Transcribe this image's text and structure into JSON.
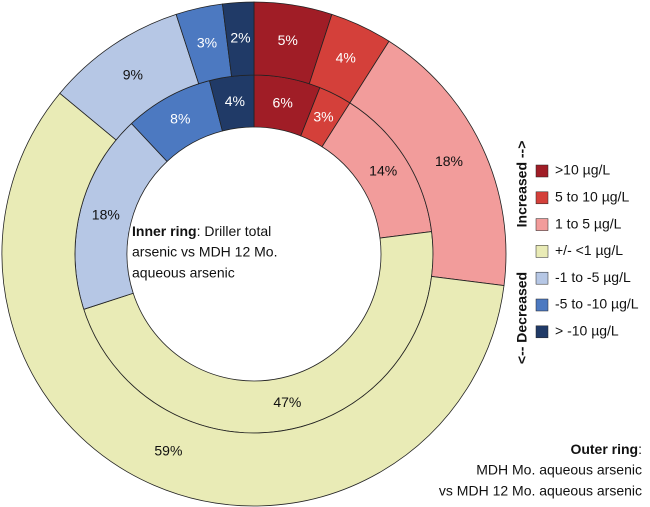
{
  "chart_data": {
    "type": "donut",
    "categories": [
      ">10 µg/L",
      "5 to 10 µg/L",
      "1 to 5 µg/L",
      "+/-  <1 µg/L",
      "-1 to -5 µg/L",
      "-5 to -10 µg/L",
      "> -10 µg/L"
    ],
    "colors": [
      "#a01d26",
      "#d4403a",
      "#f29c9b",
      "#e9ebb6",
      "#b6c7e5",
      "#4c79c1",
      "#203a67"
    ],
    "series": [
      {
        "name": "Inner ring",
        "values": [
          6,
          3,
          14,
          47,
          18,
          8,
          4
        ],
        "value_labels": [
          "6%",
          "3%",
          "14%",
          "47%",
          "18%",
          "8%",
          "4%"
        ],
        "description": [
          ": Driller total",
          "arsenic vs MDH 12 Mo.",
          "aqueous arsenic"
        ]
      },
      {
        "name": "Outer ring",
        "values": [
          5,
          4,
          18,
          59,
          9,
          3,
          2
        ],
        "value_labels": [
          "5%",
          "4%",
          "18%",
          "59%",
          "9%",
          "3%",
          "2%"
        ],
        "description": [
          ":",
          "MDH Mo. aqueous arsenic",
          "vs MDH 12 Mo. aqueous arsenic"
        ]
      }
    ],
    "axis_labels": [
      "Increased -->",
      "<-- Decreased"
    ]
  }
}
